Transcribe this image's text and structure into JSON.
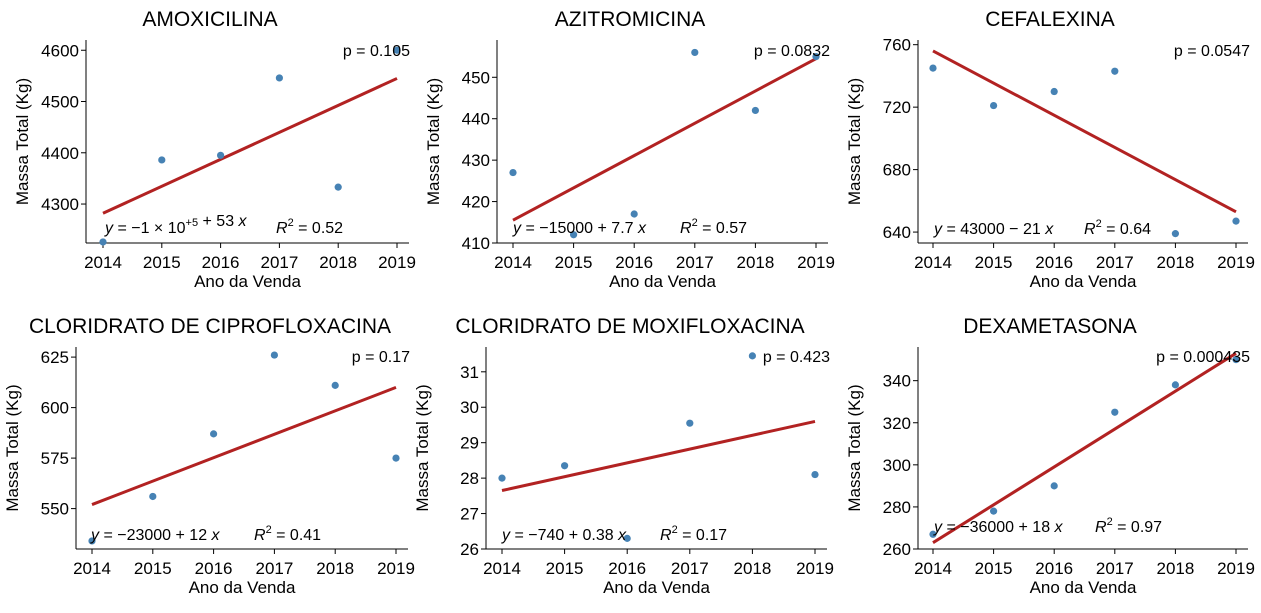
{
  "chart_data": [
    {
      "type": "scatter",
      "title": "AMOXICILINA",
      "xlabel": "Ano da Venda",
      "ylabel": "Massa Total (Kg)",
      "x": [
        2014,
        2015,
        2016,
        2017,
        2018,
        2019
      ],
      "values": [
        4226,
        4386,
        4395,
        4546,
        4333,
        4600
      ],
      "xticks": [
        "2014",
        "2015",
        "2016",
        "2017",
        "2018",
        "2019"
      ],
      "yticks": [
        "4300",
        "4400",
        "4500",
        "4600"
      ],
      "xlim": [
        2014,
        2019
      ],
      "ylim": [
        4224,
        4620
      ],
      "fit": [
        [
          2014,
          4282
        ],
        [
          2019,
          4545
        ]
      ],
      "p_text": "p = 0.105",
      "eq_text": "y = −1 × 10+5 + 53 x",
      "r2_text": "R2 = 0.52",
      "point_color": "#4682B4",
      "line_color": "#B22222"
    },
    {
      "type": "scatter",
      "title": "AZITROMICINA",
      "xlabel": "Ano da Venda",
      "ylabel": "Massa Total (Kg)",
      "x": [
        2014,
        2015,
        2016,
        2017,
        2018,
        2019
      ],
      "values": [
        427,
        412,
        417,
        456,
        442,
        455
      ],
      "xticks": [
        "2014",
        "2015",
        "2016",
        "2017",
        "2018",
        "2019"
      ],
      "yticks": [
        "410",
        "420",
        "430",
        "440",
        "450"
      ],
      "xlim": [
        2014,
        2019
      ],
      "ylim": [
        410,
        459
      ],
      "fit": [
        [
          2014,
          415.5
        ],
        [
          2019,
          454.5
        ]
      ],
      "p_text": "p = 0.0832",
      "eq_text": "y = −15000 + 7.7 x",
      "r2_text": "R2 = 0.57",
      "point_color": "#4682B4",
      "line_color": "#B22222"
    },
    {
      "type": "scatter",
      "title": "CEFALEXINA",
      "xlabel": "Ano da Venda",
      "ylabel": "Massa Total (Kg)",
      "x": [
        2014,
        2015,
        2016,
        2017,
        2018,
        2019
      ],
      "values": [
        745,
        721,
        730,
        743,
        639,
        647
      ],
      "xticks": [
        "2014",
        "2015",
        "2016",
        "2017",
        "2018",
        "2019"
      ],
      "yticks": [
        "640",
        "680",
        "720",
        "760"
      ],
      "xlim": [
        2014,
        2019
      ],
      "ylim": [
        633,
        763
      ],
      "fit": [
        [
          2014,
          756
        ],
        [
          2019,
          653
        ]
      ],
      "p_text": "p = 0.0547",
      "eq_text": "y = 43000 − 21 x",
      "r2_text": "R2 = 0.64",
      "point_color": "#4682B4",
      "line_color": "#B22222"
    },
    {
      "type": "scatter",
      "title": "CLORIDRATO DE CIPROFLOXACINA",
      "xlabel": "Ano da Venda",
      "ylabel": "Massa Total (Kg)",
      "x": [
        2014,
        2015,
        2016,
        2017,
        2018,
        2019
      ],
      "values": [
        534,
        556,
        587,
        626,
        611,
        575
      ],
      "xticks": [
        "2014",
        "2015",
        "2016",
        "2017",
        "2018",
        "2019"
      ],
      "yticks": [
        "550",
        "575",
        "600",
        "625"
      ],
      "xlim": [
        2014,
        2019
      ],
      "ylim": [
        530,
        630
      ],
      "fit": [
        [
          2014,
          552
        ],
        [
          2019,
          610
        ]
      ],
      "p_text": "p = 0.17",
      "eq_text": "y = −23000 + 12 x",
      "r2_text": "R2 = 0.41",
      "point_color": "#4682B4",
      "line_color": "#B22222"
    },
    {
      "type": "scatter",
      "title": "CLORIDRATO DE MOXIFLOXACINA",
      "xlabel": "Ano da Venda",
      "ylabel": "Massa Total (Kg)",
      "x": [
        2014,
        2015,
        2016,
        2017,
        2018,
        2019
      ],
      "values": [
        28.0,
        28.35,
        26.3,
        29.55,
        31.45,
        28.1
      ],
      "xticks": [
        "2014",
        "2015",
        "2016",
        "2017",
        "2018",
        "2019"
      ],
      "yticks": [
        "26",
        "27",
        "28",
        "29",
        "30",
        "31"
      ],
      "xlim": [
        2014,
        2019
      ],
      "ylim": [
        26,
        31.7
      ],
      "fit": [
        [
          2014,
          27.65
        ],
        [
          2019,
          29.6
        ]
      ],
      "p_text": "p = 0.423",
      "eq_text": "y = −740 + 0.38 x",
      "r2_text": "R2 = 0.17",
      "point_color": "#4682B4",
      "line_color": "#B22222"
    },
    {
      "type": "scatter",
      "title": "DEXAMETASONA",
      "xlabel": "Ano da Venda",
      "ylabel": "Massa Total (Kg)",
      "x": [
        2014,
        2015,
        2016,
        2017,
        2018,
        2019
      ],
      "values": [
        267,
        278,
        290,
        325,
        338,
        350
      ],
      "xticks": [
        "2014",
        "2015",
        "2016",
        "2017",
        "2018",
        "2019"
      ],
      "yticks": [
        "260",
        "280",
        "300",
        "320",
        "340"
      ],
      "xlim": [
        2014,
        2019
      ],
      "ylim": [
        260,
        356
      ],
      "fit": [
        [
          2014,
          263
        ],
        [
          2019,
          353
        ]
      ],
      "p_text": "p = 0.000435",
      "eq_text": "y = −36000 + 18 x",
      "r2_text": "R2 = 0.97",
      "point_color": "#4682B4",
      "line_color": "#B22222"
    }
  ]
}
